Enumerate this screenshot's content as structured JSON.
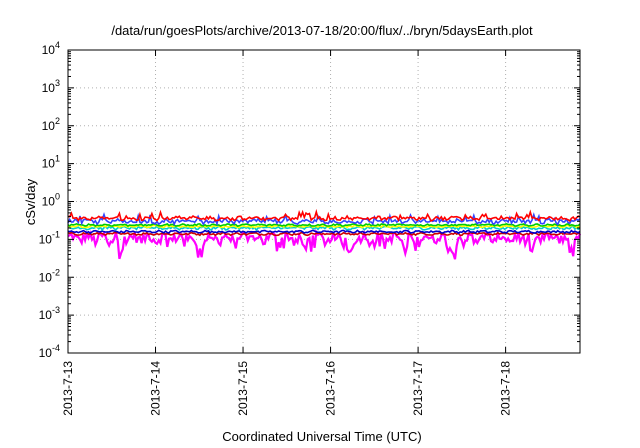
{
  "chart_data": {
    "type": "line",
    "title": "/data/run/goesPlots/archive/2013-07-18/20:00/flux/../bryn/5daysEarth.plot",
    "xlabel": "Coordinated Universal Time (UTC)",
    "ylabel": "cSv/day",
    "y_scale": "log",
    "ylim": [
      0.0001,
      10000
    ],
    "xlim": [
      0,
      5.85
    ],
    "x_ticks": [
      {
        "label": "2013-7-13",
        "value": 0
      },
      {
        "label": "2013-7-14",
        "value": 1
      },
      {
        "label": "2013-7-15",
        "value": 2
      },
      {
        "label": "2013-7-16",
        "value": 3
      },
      {
        "label": "2013-7-17",
        "value": 4
      },
      {
        "label": "2013-7-18",
        "value": 5
      }
    ],
    "y_ticks": [
      {
        "base": "10",
        "exp": "-4",
        "value": 0.0001
      },
      {
        "base": "10",
        "exp": "-3",
        "value": 0.001
      },
      {
        "base": "10",
        "exp": "-2",
        "value": 0.01
      },
      {
        "base": "10",
        "exp": "-1",
        "value": 0.1
      },
      {
        "base": "10",
        "exp": "0",
        "value": 1
      },
      {
        "base": "10",
        "exp": "1",
        "value": 10
      },
      {
        "base": "10",
        "exp": "2",
        "value": 100
      },
      {
        "base": "10",
        "exp": "3",
        "value": 1000
      },
      {
        "base": "10",
        "exp": "4",
        "value": 10000
      }
    ],
    "grid": true,
    "series": [
      {
        "color": "#ff00ff",
        "base": 0.11,
        "noise": 0.3,
        "dips": [
          0.6,
          1.5,
          2.7,
          3.2,
          3.85,
          4.4,
          5.3,
          5.75
        ],
        "values_note": ""
      },
      {
        "color": "#cc0000",
        "base": 0.14,
        "noise": 0.06
      },
      {
        "color": "#0000cc",
        "base": 0.16,
        "noise": 0.06
      },
      {
        "color": "#00cccc",
        "base": 0.2,
        "noise": 0.08
      },
      {
        "color": "#ffff00",
        "base": 0.22,
        "noise": 0.05
      },
      {
        "color": "#00cc00",
        "base": 0.24,
        "noise": 0.05
      },
      {
        "color": "#3344ff",
        "base": 0.3,
        "noise": 0.12
      },
      {
        "color": "#ff0000",
        "base": 0.36,
        "noise": 0.1
      }
    ],
    "approx_range": {
      "min": 0.03,
      "max": 0.6,
      "typical": 0.2
    }
  }
}
